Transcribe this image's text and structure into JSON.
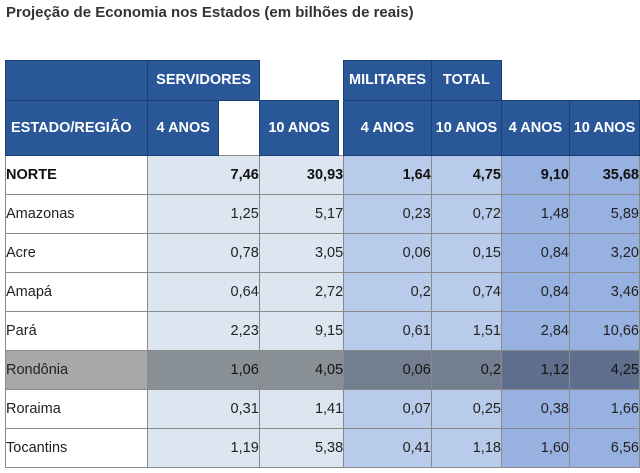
{
  "title": "Projeção de Economia nos Estados (em bilhões de reais)",
  "headers": {
    "servidores": "SERVIDORES",
    "militares": "MILITARES",
    "total": "TOTAL",
    "estado_regiao": "ESTADO/REGIÃO",
    "servidores_4": "4 ANOS",
    "servidores_10": "10 ANOS",
    "militares_4": "4 ANOS",
    "militares_10": "10 ANOS",
    "total_4": "4 ANOS",
    "total_10": "10 ANOS"
  },
  "rows": [
    {
      "name": "NORTE",
      "v": [
        "7,46",
        "30,93",
        "1,64",
        "4,75",
        "9,10",
        "35,68"
      ],
      "bold": true
    },
    {
      "name": "Amazonas",
      "v": [
        "1,25",
        "5,17",
        "0,23",
        "0,72",
        "1,48",
        "5,89"
      ]
    },
    {
      "name": "Acre",
      "v": [
        "0,78",
        "3,05",
        "0,06",
        "0,15",
        "0,84",
        "3,20"
      ]
    },
    {
      "name": "Amapá",
      "v": [
        "0,64",
        "2,72",
        "0,2",
        "0,74",
        "0,84",
        "3,46"
      ]
    },
    {
      "name": "Pará",
      "v": [
        "2,23",
        "9,15",
        "0,61",
        "1,51",
        "2,84",
        "10,66"
      ]
    },
    {
      "name": "Rondônia",
      "v": [
        "1,06",
        "4,05",
        "0,06",
        "0,2",
        "1,12",
        "4,25"
      ],
      "highlight": true
    },
    {
      "name": "Roraima",
      "v": [
        "0,31",
        "1,41",
        "0,07",
        "0,25",
        "0,38",
        "1,66"
      ]
    },
    {
      "name": "Tocantins",
      "v": [
        "1,19",
        "5,38",
        "0,41",
        "1,18",
        "1,60",
        "6,56"
      ]
    }
  ]
}
